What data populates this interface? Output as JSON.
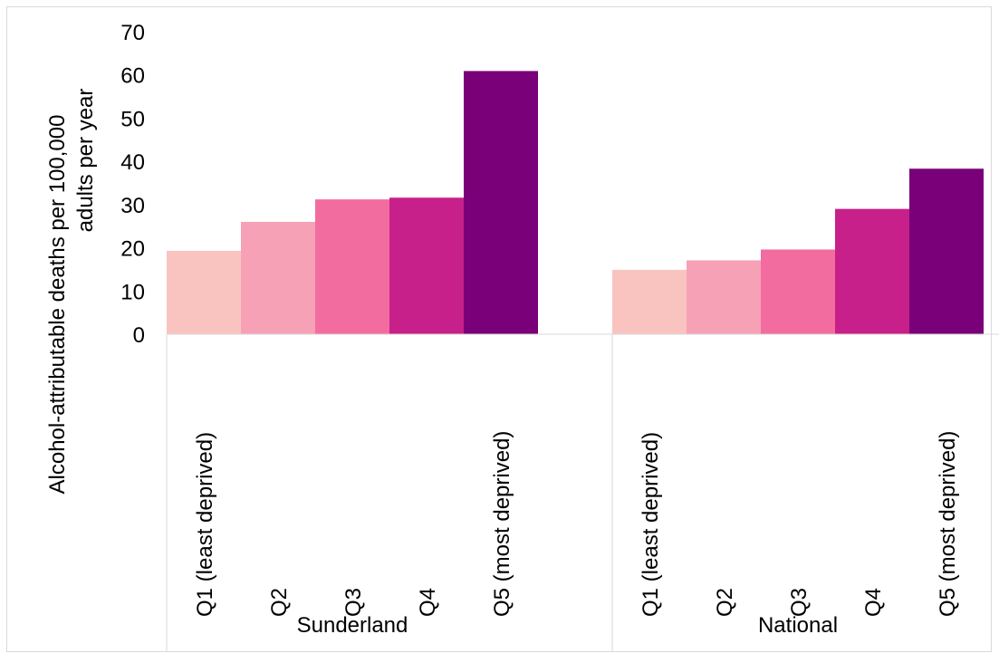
{
  "chart_data": {
    "type": "bar",
    "ylabel": "Alcohol-attributable  deaths per 100,000 adults per year",
    "ylabel_lines": [
      "Alcohol-attributable  deaths per 100,000",
      "adults per year"
    ],
    "ylim": [
      0,
      70
    ],
    "yticks": [
      0,
      10,
      20,
      30,
      40,
      50,
      60,
      70
    ],
    "grid": false,
    "groups": [
      {
        "name": "Sunderland",
        "categories": [
          "Q1  (least deprived)",
          "Q2",
          "Q3",
          "Q4",
          "Q5 (most deprived)"
        ],
        "values": [
          19.3,
          26.0,
          31.2,
          31.6,
          60.9
        ]
      },
      {
        "name": "National",
        "categories": [
          "Q1  (least deprived)",
          "Q2",
          "Q3",
          "Q4",
          "Q5 (most deprived)"
        ],
        "values": [
          14.9,
          17.1,
          19.6,
          29.0,
          38.3
        ]
      }
    ],
    "colors": [
      "#f9c4bf",
      "#f7a1b6",
      "#f36ca0",
      "#c7208a",
      "#790079"
    ]
  }
}
